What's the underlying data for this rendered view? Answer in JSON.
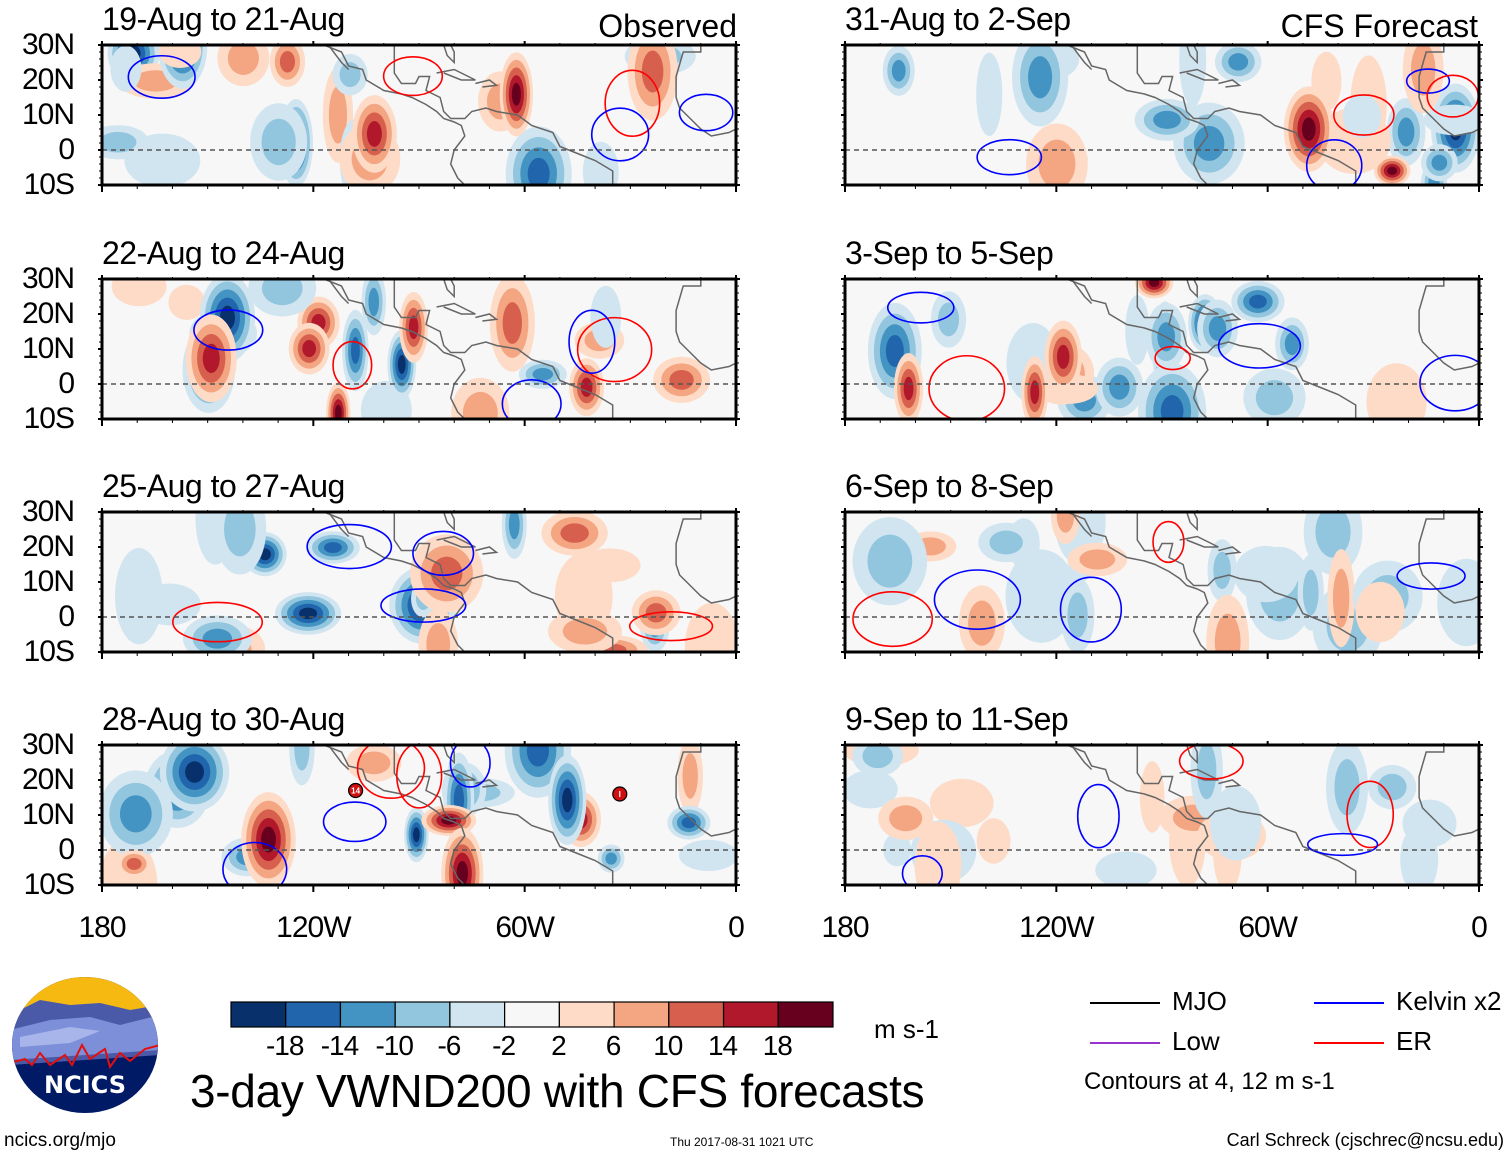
{
  "column_labels": {
    "left": "Observed",
    "right": "CFS Forecast"
  },
  "lat_ticks": [
    "30N",
    "20N",
    "10N",
    "0",
    "10S"
  ],
  "lon_ticks": [
    "180",
    "120W",
    "60W",
    "0"
  ],
  "panels": [
    {
      "title": "19-Aug to 21-Aug",
      "kind": "observed"
    },
    {
      "title": "22-Aug to 24-Aug",
      "kind": "observed"
    },
    {
      "title": "25-Aug to 27-Aug",
      "kind": "observed"
    },
    {
      "title": "28-Aug to 30-Aug",
      "kind": "observed",
      "storms": [
        {
          "label": "14",
          "lon": -108,
          "lat": 17
        },
        {
          "label": "I",
          "lon": -33,
          "lat": 16
        }
      ]
    },
    {
      "title": "31-Aug to 2-Sep",
      "kind": "forecast"
    },
    {
      "title": "3-Sep to 5-Sep",
      "kind": "forecast"
    },
    {
      "title": "6-Sep to 8-Sep",
      "kind": "forecast"
    },
    {
      "title": "9-Sep to 11-Sep",
      "kind": "forecast"
    }
  ],
  "chart_data": {
    "type": "heatmap",
    "title": "3-day VWND200 with CFS forecasts",
    "variable": "VWND200",
    "units": "m s-1",
    "x_range": [
      -180,
      0
    ],
    "y_range": [
      -10,
      30
    ],
    "xticks": [
      "180",
      "120W",
      "60W",
      "0"
    ],
    "yticks": [
      "30N",
      "20N",
      "10N",
      "0",
      "10S"
    ],
    "colorbar": {
      "levels": [
        -18,
        -14,
        -10,
        -6,
        -2,
        2,
        6,
        10,
        14,
        18
      ],
      "labels": [
        "-18",
        "-14",
        "-10",
        "-6",
        "-2",
        "2",
        "6",
        "10",
        "14",
        "18"
      ],
      "colors": [
        "#08306b",
        "#2166ac",
        "#4393c3",
        "#92c5de",
        "#d1e5f0",
        "#f7f7f7",
        "#fddbc7",
        "#f4a582",
        "#d6604d",
        "#b2182b",
        "#67001f"
      ]
    },
    "legend": [
      {
        "label": "MJO",
        "color": "#000000"
      },
      {
        "label": "Kelvin x2",
        "color": "#0000ff"
      },
      {
        "label": "Low",
        "color": "#9933cc"
      },
      {
        "label": "ER",
        "color": "#ff0000"
      }
    ],
    "contour_note": "Contours at 4, 12 m s-1",
    "panels": [
      {
        "period": "19-Aug to 21-Aug",
        "type": "Observed"
      },
      {
        "period": "22-Aug to 24-Aug",
        "type": "Observed"
      },
      {
        "period": "25-Aug to 27-Aug",
        "type": "Observed"
      },
      {
        "period": "28-Aug to 30-Aug",
        "type": "Observed"
      },
      {
        "period": "31-Aug to 2-Sep",
        "type": "CFS Forecast"
      },
      {
        "period": "3-Sep to 5-Sep",
        "type": "CFS Forecast"
      },
      {
        "period": "6-Sep to 8-Sep",
        "type": "CFS Forecast"
      },
      {
        "period": "9-Sep to 11-Sep",
        "type": "CFS Forecast"
      }
    ]
  },
  "logo": {
    "text": "NCICS"
  },
  "footer": {
    "left": "ncics.org/mjo",
    "center": "Thu 2017-08-31 1021 UTC",
    "right": "Carl Schreck (cjschrec@ncsu.edu)"
  }
}
